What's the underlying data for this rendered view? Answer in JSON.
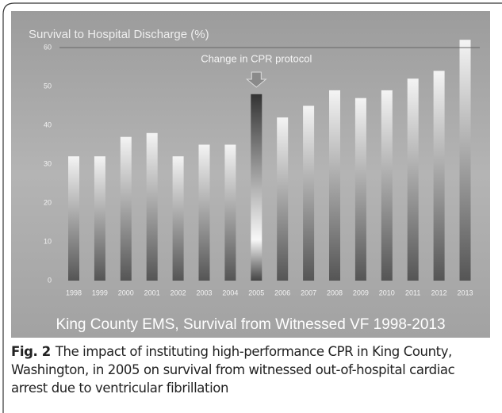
{
  "chart_data": {
    "type": "bar",
    "title": "Survival to Hospital Discharge (%)",
    "footer_title": "King County EMS, Survival from Witnessed VF  1998-2013",
    "annotation": {
      "text": "Change in CPR protocol",
      "category": "2005"
    },
    "categories": [
      "1998",
      "1999",
      "2000",
      "2001",
      "2002",
      "2003",
      "2004",
      "2005",
      "2006",
      "2007",
      "2008",
      "2009",
      "2010",
      "2011",
      "2012",
      "2013"
    ],
    "values": [
      32,
      32,
      37,
      38,
      32,
      35,
      35,
      48,
      42,
      45,
      49,
      47,
      49,
      52,
      54,
      62
    ],
    "ylim": [
      0,
      60
    ],
    "yticks": [
      0,
      10,
      20,
      30,
      40,
      50,
      60
    ],
    "grid": true
  },
  "caption": {
    "label": "Fig. 2",
    "text": "The impact of instituting high-performance CPR in King County, Washington, in 2005 on survival from witnessed out-of-hospital cardiac arrest due to ventricular fibrillation"
  }
}
